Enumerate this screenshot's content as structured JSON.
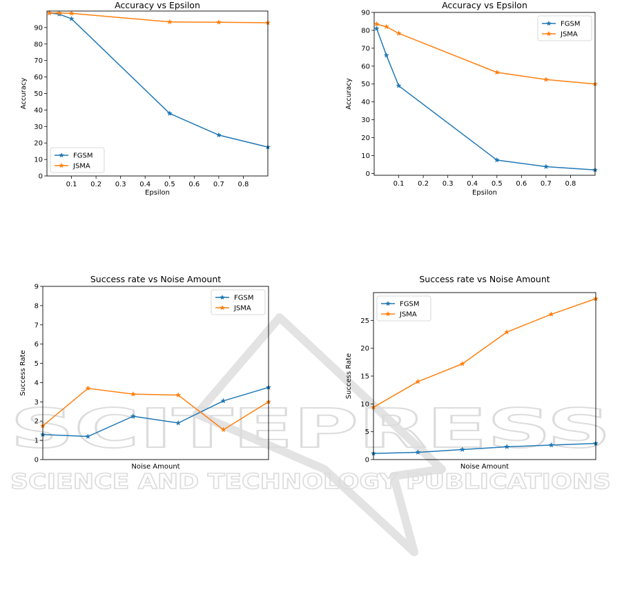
{
  "watermark": {
    "line1": "SCITEPRESS",
    "line2": "SCIENCE AND TECHNOLOGY PUBLICATIONS",
    "color": "#d9d9d9"
  },
  "chart_data": [
    {
      "type": "line",
      "title": "Accuracy vs Epsilon",
      "xlabel": "Epsilon",
      "ylabel": "Accuracy",
      "x": [
        0.01,
        0.05,
        0.1,
        0.5,
        0.7,
        0.9
      ],
      "xlim": [
        0.0,
        0.9
      ],
      "ylim": [
        0,
        100
      ],
      "xticks": [
        0.1,
        0.2,
        0.3,
        0.4,
        0.5,
        0.6,
        0.7,
        0.8
      ],
      "yticks": [
        0,
        10,
        20,
        30,
        40,
        50,
        60,
        70,
        80,
        90
      ],
      "legend": "lower-left",
      "series": [
        {
          "name": "FGSM",
          "color": "#1f77b4",
          "values": [
            98.8,
            98.1,
            95.3,
            37.9,
            24.8,
            17.5
          ]
        },
        {
          "name": "JSMA",
          "color": "#ff7f0e",
          "values": [
            98.8,
            98.8,
            98.6,
            93.4,
            93.2,
            92.9
          ]
        }
      ]
    },
    {
      "type": "line",
      "title": "Accuracy vs Epsilon",
      "xlabel": "Epsilon",
      "ylabel": "Accuracy",
      "x": [
        0.01,
        0.05,
        0.1,
        0.5,
        0.7,
        0.9
      ],
      "xlim": [
        0.0,
        0.9
      ],
      "ylim": [
        -1,
        90
      ],
      "xticks": [
        0.1,
        0.2,
        0.3,
        0.4,
        0.5,
        0.6,
        0.7,
        0.8
      ],
      "yticks": [
        0,
        10,
        20,
        30,
        40,
        50,
        60,
        70,
        80,
        90
      ],
      "legend": "top-right",
      "series": [
        {
          "name": "FGSM",
          "color": "#1f77b4",
          "values": [
            81.0,
            66.0,
            49.0,
            7.5,
            3.8,
            2.0
          ]
        },
        {
          "name": "JSMA",
          "color": "#ff7f0e",
          "values": [
            83.5,
            82.0,
            78.3,
            56.5,
            52.5,
            50.0
          ]
        }
      ]
    },
    {
      "type": "line",
      "title": "Success rate vs Noise Amount",
      "xlabel": "Noise Amount",
      "ylabel": "Success Rate",
      "x": [
        0,
        1,
        2,
        3,
        4,
        5
      ],
      "xlim": [
        0,
        5
      ],
      "ylim": [
        0,
        9
      ],
      "xticks": [],
      "yticks": [
        0,
        1,
        2,
        3,
        4,
        5,
        6,
        7,
        8,
        9
      ],
      "legend": "top-right",
      "series": [
        {
          "name": "FGSM",
          "color": "#1f77b4",
          "values": [
            1.3,
            1.2,
            2.25,
            1.9,
            3.05,
            3.75
          ]
        },
        {
          "name": "JSMA",
          "color": "#ff7f0e",
          "values": [
            1.75,
            3.7,
            3.4,
            3.35,
            1.55,
            3.0
          ]
        }
      ]
    },
    {
      "type": "line",
      "title": "Success rate vs Noise Amount",
      "xlabel": "Noise Amount",
      "ylabel": "Success Rate",
      "x": [
        0,
        1,
        2,
        3,
        4,
        5
      ],
      "xlim": [
        0,
        5
      ],
      "ylim": [
        0,
        30
      ],
      "xticks": [],
      "yticks": [
        0,
        5,
        10,
        15,
        20,
        25
      ],
      "legend": "top-left",
      "series": [
        {
          "name": "FGSM",
          "color": "#1f77b4",
          "values": [
            1.1,
            1.3,
            1.8,
            2.3,
            2.6,
            2.9
          ]
        },
        {
          "name": "JSMA",
          "color": "#ff7f0e",
          "values": [
            9.4,
            14.0,
            17.2,
            22.9,
            26.1,
            28.9
          ]
        }
      ]
    }
  ]
}
